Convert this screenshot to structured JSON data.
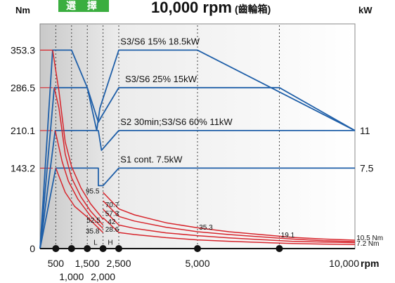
{
  "header": {
    "select_label": "選 擇",
    "title_main": "10,000 rpm",
    "title_sub": "(齒輪箱)"
  },
  "colors": {
    "power_line": "#1f5fa8",
    "torque_line": "#d7262d",
    "select_button": "#3aae3f",
    "marker": "#111111"
  },
  "chart_data": {
    "type": "line",
    "ylabel_left": "Nm",
    "ylabel_right": "kW",
    "x_unit_label": "rpm",
    "xlim": [
      0,
      10000
    ],
    "ylim_torque": [
      0,
      400
    ],
    "x_ticks_row1": [
      "500",
      "1,500",
      "2,500",
      "5,000",
      "10,000"
    ],
    "x_ticks_row2": [
      "1,000",
      "2,000"
    ],
    "x_tick_values_row1": [
      500,
      1500,
      2500,
      5000,
      10000
    ],
    "x_tick_values_row2": [
      1000,
      2000
    ],
    "left_ticks": [
      {
        "label": "353.3",
        "value": 353.3
      },
      {
        "label": "286.5",
        "value": 286.5
      },
      {
        "label": "210.1",
        "value": 210.1
      },
      {
        "label": "143.2",
        "value": 143.2
      },
      {
        "label": "0",
        "value": 0
      }
    ],
    "right_ticks": [
      {
        "label": "11",
        "value": 210.1
      },
      {
        "label": "7.5",
        "value": 143.2
      }
    ],
    "marker_rpms": [
      500,
      1000,
      1500,
      2000,
      2500,
      5000,
      7600
    ],
    "dashed_rpms": [
      500,
      1000,
      1500,
      2000,
      2500,
      5000,
      7600
    ],
    "power_series": [
      {
        "name": "S3/S6 15% 18.5kW",
        "points": [
          [
            0,
            0
          ],
          [
            400,
            353.3
          ],
          [
            1000,
            353.3
          ],
          [
            1500,
            286.5
          ],
          [
            1800,
            210.1
          ],
          [
            1900,
            250
          ],
          [
            2500,
            353.3
          ],
          [
            5000,
            353.3
          ],
          [
            10000,
            210.1
          ]
        ]
      },
      {
        "name": "S3/S6 25% 15kW",
        "points": [
          [
            0,
            0
          ],
          [
            450,
            286.5
          ],
          [
            1500,
            286.5
          ],
          [
            1850,
            225
          ],
          [
            1950,
            235
          ],
          [
            2500,
            286.5
          ],
          [
            7600,
            286.5
          ],
          [
            10000,
            210.1
          ]
        ]
      },
      {
        "name": "S2 30min;S3/S6 60% 11kW",
        "points": [
          [
            0,
            0
          ],
          [
            480,
            210.1
          ],
          [
            1850,
            210.1
          ],
          [
            1950,
            175
          ],
          [
            2500,
            210.1
          ],
          [
            10000,
            210.1
          ]
        ]
      },
      {
        "name": "S1 cont. 7.5kW",
        "points": [
          [
            0,
            0
          ],
          [
            500,
            143.2
          ],
          [
            1850,
            143.2
          ],
          [
            1850,
            112
          ],
          [
            2000,
            112
          ],
          [
            2500,
            143.2
          ],
          [
            10000,
            143.2
          ]
        ]
      }
    ],
    "torque_series": [
      {
        "points": [
          [
            400,
            353.3
          ],
          [
            600,
            280
          ],
          [
            800,
            190
          ],
          [
            1000,
            146
          ],
          [
            1300,
            108
          ],
          [
            1600,
            80
          ],
          [
            2000,
            52.5
          ]
        ]
      },
      {
        "points": [
          [
            450,
            286.5
          ],
          [
            600,
            250
          ],
          [
            800,
            168
          ],
          [
            1000,
            126
          ],
          [
            1300,
            92
          ],
          [
            1600,
            67
          ],
          [
            2000,
            42
          ]
        ]
      },
      {
        "points": [
          [
            480,
            210.1
          ],
          [
            700,
            155
          ],
          [
            900,
            120
          ],
          [
            1200,
            88
          ],
          [
            1600,
            58
          ],
          [
            2000,
            35.8
          ]
        ]
      },
      {
        "points": [
          [
            500,
            143.2
          ],
          [
            800,
            100
          ],
          [
            1100,
            75
          ],
          [
            1500,
            56
          ],
          [
            2000,
            28.6
          ]
        ]
      },
      {
        "points": [
          [
            2000,
            100
          ],
          [
            2500,
            70.7
          ],
          [
            3000,
            60
          ],
          [
            4000,
            46
          ],
          [
            5000,
            37
          ],
          [
            6000,
            30
          ],
          [
            7000,
            25
          ],
          [
            8000,
            20
          ],
          [
            9000,
            17
          ],
          [
            10000,
            15
          ]
        ]
      },
      {
        "points": [
          [
            2000,
            85
          ],
          [
            2500,
            57.3
          ],
          [
            3000,
            49
          ],
          [
            4000,
            38
          ],
          [
            5000,
            30
          ],
          [
            6000,
            25
          ],
          [
            7000,
            21
          ],
          [
            8000,
            17
          ],
          [
            9000,
            14
          ],
          [
            10000,
            12.5
          ]
        ]
      },
      {
        "points": [
          [
            2000,
            70
          ],
          [
            2500,
            42
          ],
          [
            3000,
            36
          ],
          [
            4000,
            28
          ],
          [
            5000,
            23
          ],
          [
            6000,
            19
          ],
          [
            7000,
            16
          ],
          [
            8000,
            13
          ],
          [
            9000,
            11.5
          ],
          [
            10000,
            10.5
          ]
        ]
      },
      {
        "points": [
          [
            2000,
            55
          ],
          [
            2500,
            28.6
          ],
          [
            3000,
            25
          ],
          [
            4000,
            19.5
          ],
          [
            5000,
            15.5
          ],
          [
            6000,
            13
          ],
          [
            7000,
            11
          ],
          [
            8000,
            9
          ],
          [
            9000,
            8
          ],
          [
            10000,
            7.2
          ]
        ]
      }
    ],
    "series_labels": [
      {
        "text": "S3/S6 15% 18.5kW",
        "x": 2550,
        "y": 363
      },
      {
        "text": "S3/S6 25% 15kW",
        "x": 2700,
        "y": 296
      },
      {
        "text": "S2 30min;S3/S6 60% 11kW",
        "x": 2550,
        "y": 220
      },
      {
        "text": "S1 cont. 7.5kW",
        "x": 2550,
        "y": 153
      }
    ],
    "annotations": [
      {
        "text": "95.5",
        "x": 1450,
        "y": 98
      },
      {
        "text": "70.7",
        "x": 2070,
        "y": 74
      },
      {
        "text": "57.3",
        "x": 2070,
        "y": 58
      },
      {
        "text": "52.5",
        "x": 1480,
        "y": 46
      },
      {
        "text": "42",
        "x": 2150,
        "y": 44
      },
      {
        "text": "35.8",
        "x": 1450,
        "y": 27
      },
      {
        "text": "28.6",
        "x": 2070,
        "y": 30
      },
      {
        "text": "L",
        "x": 1700,
        "y": 7
      },
      {
        "text": "H",
        "x": 2150,
        "y": 7
      },
      {
        "text": "35.3",
        "x": 5050,
        "y": 34
      },
      {
        "text": "19.1",
        "x": 7650,
        "y": 20
      },
      {
        "text": "10.5 Nm",
        "x": 10050,
        "y": 15
      },
      {
        "text": "7.2 Nm",
        "x": 10050,
        "y": 5
      }
    ]
  }
}
